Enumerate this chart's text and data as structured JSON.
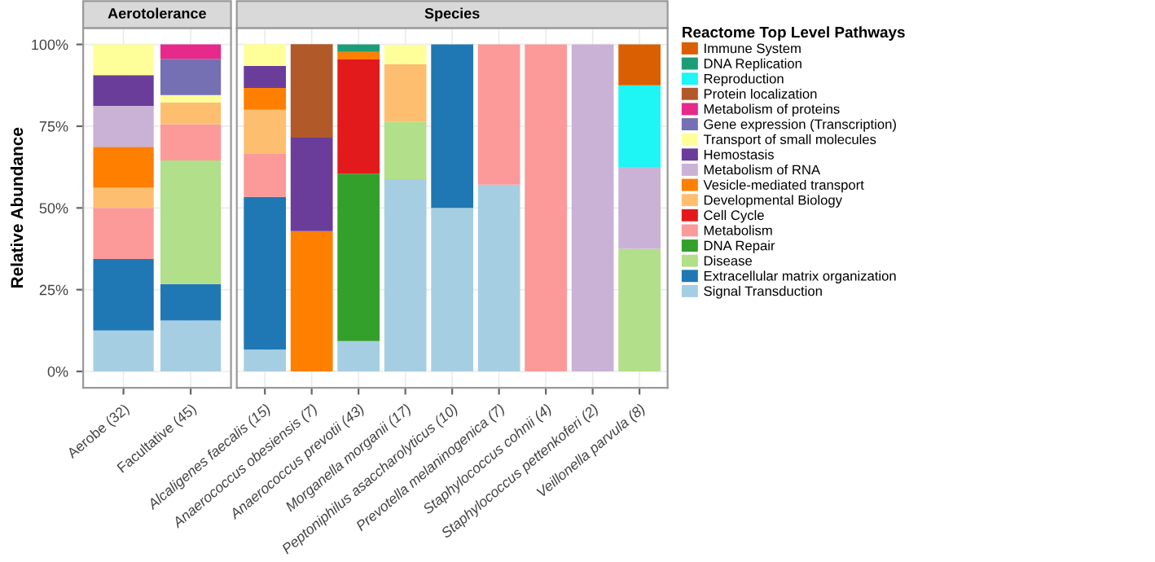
{
  "chart_data": [
    {
      "type": "bar",
      "stacked": true,
      "title": "Aerotolerance",
      "ylabel": "Relative Abundance",
      "categories": [
        "Aerobe (32)",
        "Facultative (45)"
      ],
      "ylim": [
        -5,
        105
      ],
      "yticks": [
        {
          "value": 0,
          "label": "0%"
        },
        {
          "value": 25,
          "label": "25%"
        },
        {
          "value": 50,
          "label": "50%"
        },
        {
          "value": 75,
          "label": "75%"
        },
        {
          "value": 100,
          "label": "100%"
        }
      ],
      "grid": true,
      "series": [
        {
          "color": "#a6cee3",
          "values": [
            12.5,
            15.6
          ]
        },
        {
          "color": "#1f78b4",
          "values": [
            21.9,
            11.1
          ]
        },
        {
          "color": "#b2df8a",
          "values": [
            null,
            37.8
          ]
        },
        {
          "color": "#fb9a99",
          "values": [
            15.6,
            11.1
          ]
        },
        {
          "color": "#fdbf6f",
          "values": [
            6.2,
            6.7
          ]
        },
        {
          "color": "#ff7f00",
          "values": [
            12.5,
            null
          ]
        },
        {
          "color": "#cab2d6",
          "values": [
            12.5,
            null
          ]
        },
        {
          "color": "#6a3d9a",
          "values": [
            9.4,
            null
          ]
        },
        {
          "color": "#ffff99",
          "values": [
            9.4,
            2.2
          ]
        },
        {
          "color": "#7570b3",
          "values": [
            null,
            11.1
          ]
        },
        {
          "color": "#e7298a",
          "values": [
            null,
            4.4
          ]
        }
      ]
    },
    {
      "type": "bar",
      "stacked": true,
      "title": "Species",
      "legend_title": "Reactome Top Level Pathways",
      "categories": [
        "Alcaligenes faecalis (15)",
        "Anaerococcus obesiensis (7)",
        "Anaerococcus prevotii (43)",
        "Morganella morganii (17)",
        "Peptoniphilus asaccharolyticus (10)",
        "Prevotella melaninogenica (7)",
        "Staphylococcus cohnii (4)",
        "Staphylococcus pettenkoferi (2)",
        "Veillonella parvula (8)"
      ],
      "ylim": [
        -5,
        105
      ],
      "yticks": [
        {
          "value": 0,
          "label": null
        },
        {
          "value": 25,
          "label": null
        },
        {
          "value": 50,
          "label": null
        },
        {
          "value": 75,
          "label": null
        },
        {
          "value": 100,
          "label": null
        }
      ],
      "tick_labels": "x",
      "grid": true,
      "legend": "right",
      "series": [
        {
          "name": "Signal Transduction",
          "color": "#a6cee3",
          "values": [
            6.7,
            null,
            9.3,
            58.8,
            50,
            57.1,
            null,
            null,
            null
          ]
        },
        {
          "name": "Extracellular matrix organization",
          "color": "#1f78b4",
          "values": [
            46.7,
            null,
            null,
            null,
            50,
            null,
            null,
            null,
            null
          ]
        },
        {
          "name": "Disease",
          "color": "#b2df8a",
          "values": [
            null,
            null,
            null,
            17.6,
            null,
            null,
            null,
            null,
            37.5
          ]
        },
        {
          "name": "DNA Repair",
          "color": "#33a02c",
          "values": [
            null,
            null,
            51.2,
            null,
            null,
            null,
            null,
            null,
            null
          ]
        },
        {
          "name": "Metabolism",
          "color": "#fb9a99",
          "values": [
            13.3,
            null,
            null,
            null,
            null,
            42.9,
            100,
            null,
            null
          ]
        },
        {
          "name": "Cell Cycle",
          "color": "#e31a1c",
          "values": [
            null,
            null,
            34.9,
            null,
            null,
            null,
            null,
            null,
            null
          ]
        },
        {
          "name": "Developmental Biology",
          "color": "#fdbf6f",
          "values": [
            13.3,
            null,
            null,
            17.6,
            null,
            null,
            null,
            null,
            null
          ]
        },
        {
          "name": "Vesicle-mediated transport",
          "color": "#ff7f00",
          "values": [
            6.7,
            42.9,
            2.3,
            null,
            null,
            null,
            null,
            null,
            null
          ]
        },
        {
          "name": "Metabolism of RNA",
          "color": "#cab2d6",
          "values": [
            null,
            null,
            null,
            null,
            null,
            null,
            null,
            100,
            25
          ]
        },
        {
          "name": "Hemostasis",
          "color": "#6a3d9a",
          "values": [
            6.7,
            28.6,
            null,
            null,
            null,
            null,
            null,
            null,
            null
          ]
        },
        {
          "name": "Transport of small molecules",
          "color": "#ffff99",
          "values": [
            6.7,
            null,
            null,
            5.9,
            null,
            null,
            null,
            null,
            null
          ]
        },
        {
          "name": "Gene expression (Transcription)",
          "color": "#7570b3",
          "values": [
            null,
            null,
            null,
            null,
            null,
            null,
            null,
            null,
            null
          ]
        },
        {
          "name": "Metabolism of proteins",
          "color": "#e7298a",
          "values": [
            null,
            null,
            null,
            null,
            null,
            null,
            null,
            null,
            null
          ]
        },
        {
          "name": "Protein localization",
          "color": "#b15928",
          "values": [
            null,
            28.6,
            null,
            null,
            null,
            null,
            null,
            null,
            null
          ]
        },
        {
          "name": "Reproduction",
          "color": "#1ef5f5",
          "values": [
            null,
            null,
            null,
            null,
            null,
            null,
            null,
            null,
            25
          ]
        },
        {
          "name": "DNA Replication",
          "color": "#1b9e77",
          "values": [
            null,
            null,
            2.3,
            null,
            null,
            null,
            null,
            null,
            null
          ]
        },
        {
          "name": "Immune System",
          "color": "#d95f02",
          "values": [
            null,
            null,
            null,
            null,
            null,
            null,
            null,
            null,
            12.5
          ]
        }
      ]
    }
  ]
}
